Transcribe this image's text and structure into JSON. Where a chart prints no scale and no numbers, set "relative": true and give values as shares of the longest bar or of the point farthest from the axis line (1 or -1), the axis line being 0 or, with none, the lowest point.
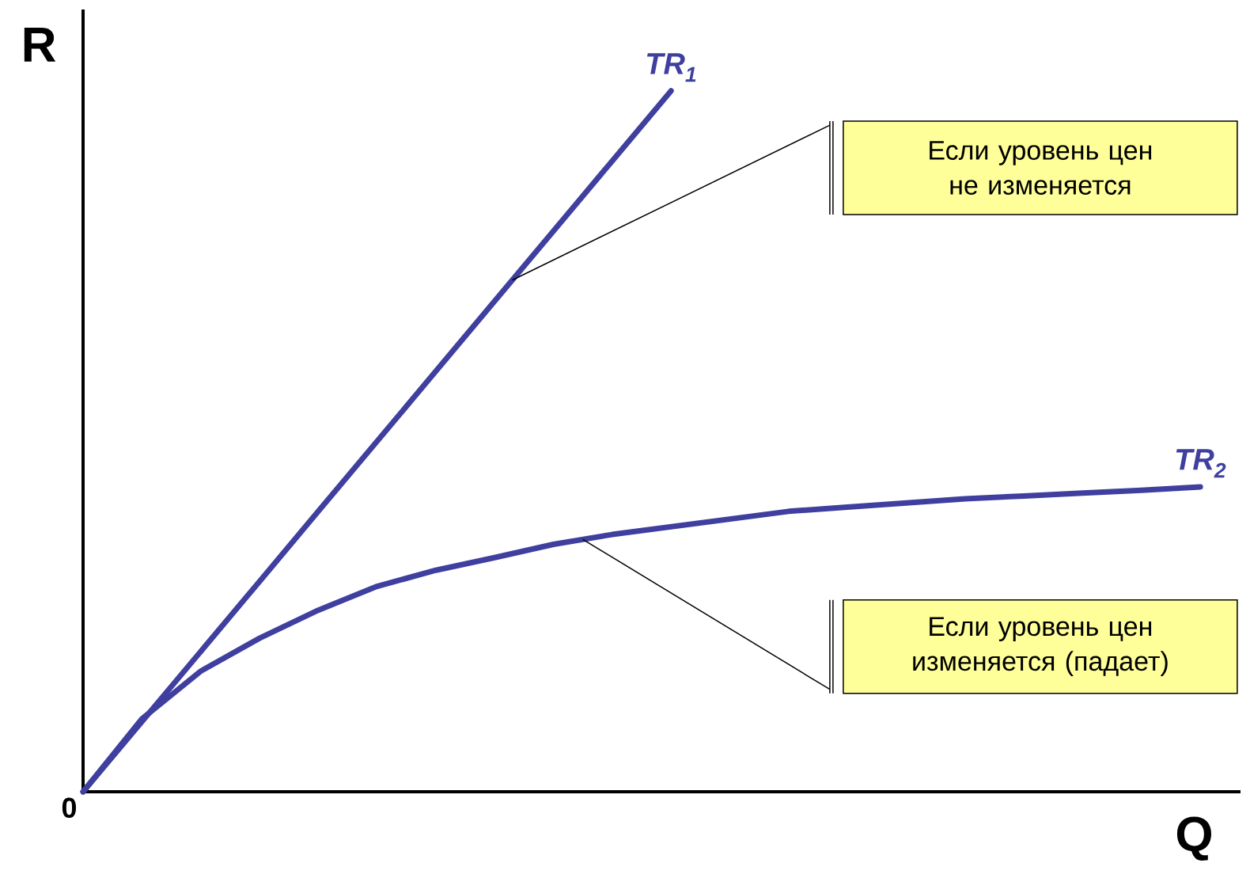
{
  "chart_data": {
    "type": "line",
    "relative": true,
    "xlabel": "Q",
    "ylabel": "R",
    "categories": [
      null,
      null,
      null,
      null,
      null,
      null,
      null,
      null,
      null,
      null,
      null,
      null,
      null,
      null,
      null,
      null,
      null,
      null,
      null,
      null
    ],
    "series": [
      {
        "name": "TR$_{1}$",
        "color": "#3f3f9f",
        "values": [
          0,
          0.1,
          0.2,
          0.3,
          0.4,
          0.5,
          0.6,
          0.7,
          0.8,
          0.9,
          1.0,
          null,
          null,
          null,
          null,
          null,
          null,
          null,
          null,
          null
        ]
      },
      {
        "name": "TR$_{2}$",
        "color": "#3f3f9f",
        "values": [
          0,
          0.104,
          0.172,
          0.219,
          0.259,
          0.293,
          0.316,
          0.334,
          0.353,
          0.367,
          0.378,
          0.389,
          0.4,
          0.406,
          0.412,
          0.418,
          0.422,
          0.426,
          0.43,
          0.435
        ]
      }
    ],
    "annotations": [
      "0",
      "Если уровень цен не изменяется",
      "Если уровень цен изменяется (падает)"
    ]
  }
}
